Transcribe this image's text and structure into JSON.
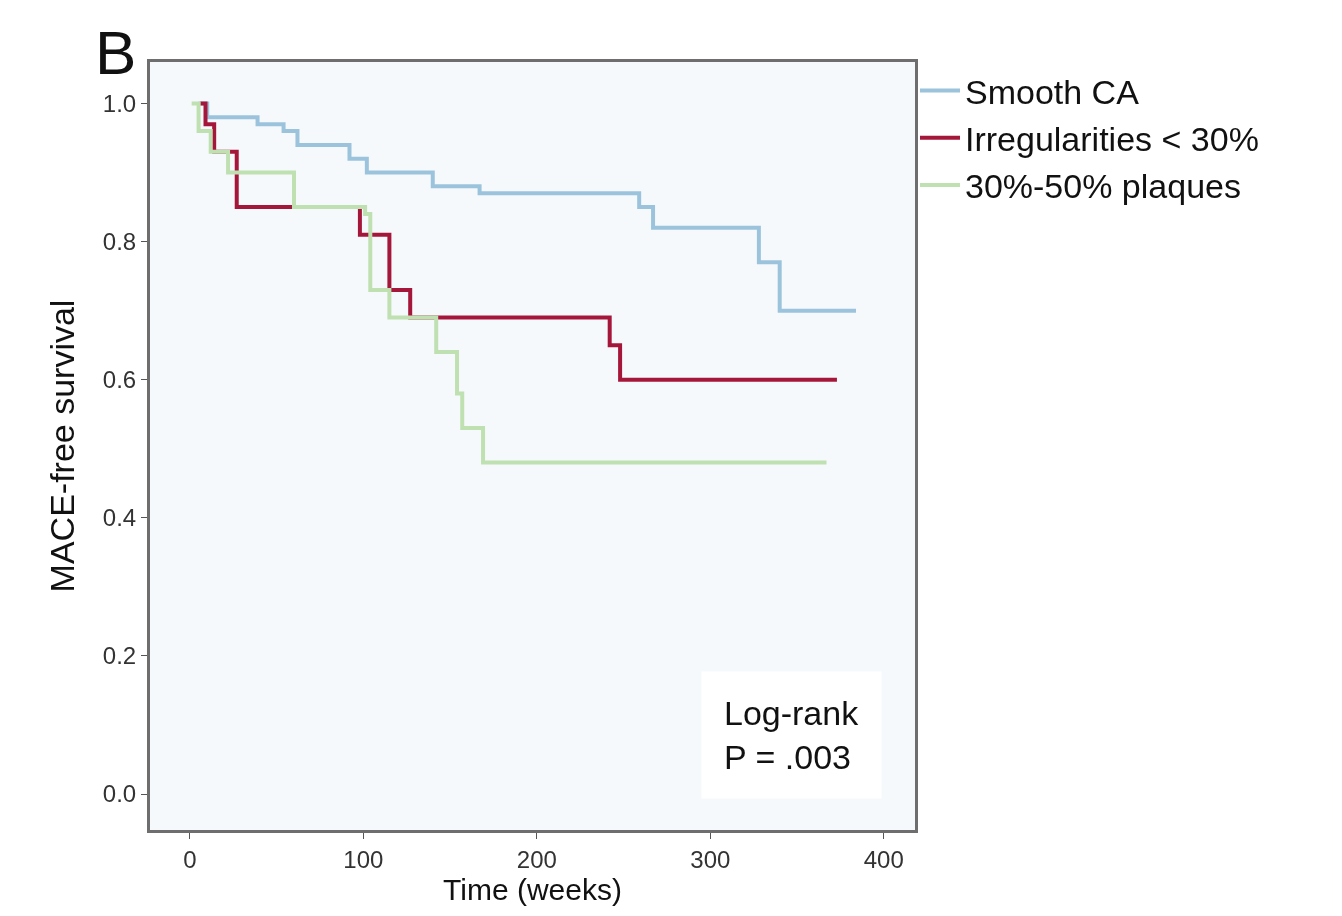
{
  "chart_data": {
    "type": "step",
    "title": "B",
    "xlabel": "Time (weeks)",
    "ylabel": "MACE-free survival",
    "series": [
      {
        "name": "Smooth CA",
        "color": "#9cc3dc",
        "x": [
          5,
          10,
          39,
          54,
          62,
          92,
          102,
          140,
          167,
          259,
          267,
          328,
          340,
          384
        ],
        "values": [
          1,
          0.98,
          0.97,
          0.96,
          0.94,
          0.92,
          0.9,
          0.88,
          0.87,
          0.85,
          0.82,
          0.77,
          0.7,
          0.7
        ]
      },
      {
        "name": "Irregularities < 30%",
        "color": "#a5173a",
        "x": [
          6,
          9,
          14,
          27,
          98,
          115,
          127,
          242,
          248,
          373
        ],
        "values": [
          1,
          0.97,
          0.93,
          0.85,
          0.81,
          0.73,
          0.69,
          0.65,
          0.6,
          0.6
        ]
      },
      {
        "name": "30%-50% plaques",
        "color": "#bfe0b0",
        "x": [
          1,
          5,
          12,
          22,
          60,
          101,
          104,
          115,
          142,
          154,
          157,
          169,
          367
        ],
        "values": [
          1,
          0.96,
          0.93,
          0.9,
          0.85,
          0.84,
          0.73,
          0.69,
          0.64,
          0.58,
          0.53,
          0.48,
          0.48
        ]
      }
    ],
    "xlim": [
      -23,
      418
    ],
    "xticks": [
      0,
      100,
      200,
      300,
      400
    ],
    "ylim": [
      -0.052,
      1.06
    ],
    "yticks": [
      {
        "value": 0,
        "label": "0.0"
      },
      {
        "value": 0.2,
        "label": "0.2"
      },
      {
        "value": 0.4,
        "label": "0.4"
      },
      {
        "value": 0.6,
        "label": "0.6"
      },
      {
        "value": 0.8,
        "label": "0.8"
      },
      {
        "value": 1,
        "label": "1.0"
      }
    ],
    "grid": false,
    "legend": "top right",
    "line_style": "solid",
    "marker": "none",
    "annotations": [
      "Log-rank\nP = .003"
    ]
  }
}
